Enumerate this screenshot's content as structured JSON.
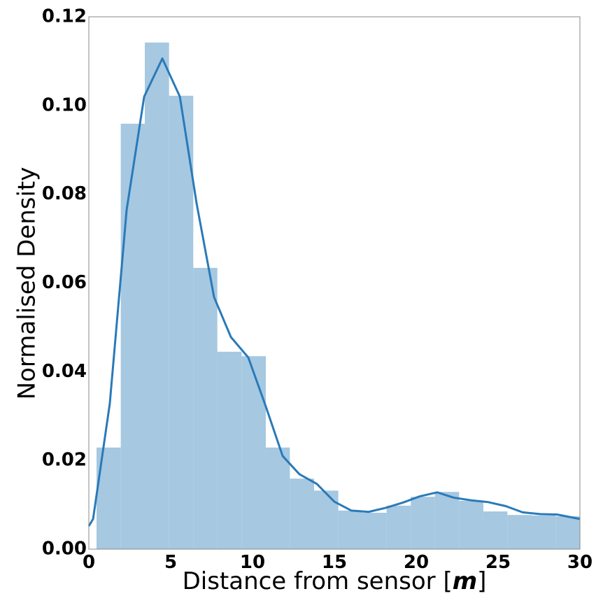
{
  "chart_data": {
    "type": "histogram",
    "x_label": [
      "Distance from sensor [",
      "m",
      "]"
    ],
    "y_label": "Normalised Density",
    "bins": [
      0.47,
      1.95,
      3.42,
      4.9,
      6.38,
      7.85,
      9.33,
      10.81,
      12.28,
      13.76,
      15.24,
      16.71,
      18.19,
      19.67,
      21.14,
      22.62,
      24.1,
      25.57,
      27.05,
      28.52,
      30.0
    ],
    "values": [
      0.0229,
      0.0959,
      0.1142,
      0.1022,
      0.0634,
      0.0445,
      0.0435,
      0.0229,
      0.0159,
      0.0132,
      0.0087,
      0.0082,
      0.0098,
      0.0118,
      0.0129,
      0.0109,
      0.0085,
      0.0077,
      0.0076,
      0.0074
    ],
    "color": "#a6c8e1",
    "kde": {
      "color": "#2a7ab8",
      "x": [
        0,
        0.26,
        1.28,
        2.31,
        3.38,
        4.49,
        5.56,
        6.58,
        7.65,
        8.68,
        9.74,
        10.77,
        11.84,
        12.86,
        13.93,
        15.0,
        16.03,
        17.09,
        18.12,
        19.19,
        20.21,
        21.28,
        22.3,
        23.37,
        24.4,
        25.47,
        26.5,
        27.56,
        28.6,
        30.0
      ],
      "values": [
        0.0052,
        0.0068,
        0.0328,
        0.0765,
        0.102,
        0.1106,
        0.102,
        0.078,
        0.0568,
        0.0478,
        0.0432,
        0.0326,
        0.021,
        0.0169,
        0.0147,
        0.0107,
        0.0087,
        0.0084,
        0.0093,
        0.0105,
        0.0119,
        0.0128,
        0.0116,
        0.011,
        0.0106,
        0.0097,
        0.0083,
        0.0079,
        0.0078,
        0.0068
      ]
    },
    "xlim": [
      0,
      30
    ],
    "xticks": [
      0,
      5,
      10,
      15,
      20,
      25,
      30
    ],
    "ylim": [
      0,
      0.12
    ],
    "yticks": [
      {
        "value": 0,
        "label": "0.00"
      },
      0.02,
      0.04,
      0.06,
      0.08,
      {
        "value": 0.1,
        "label": "0.10"
      },
      0.12
    ]
  }
}
